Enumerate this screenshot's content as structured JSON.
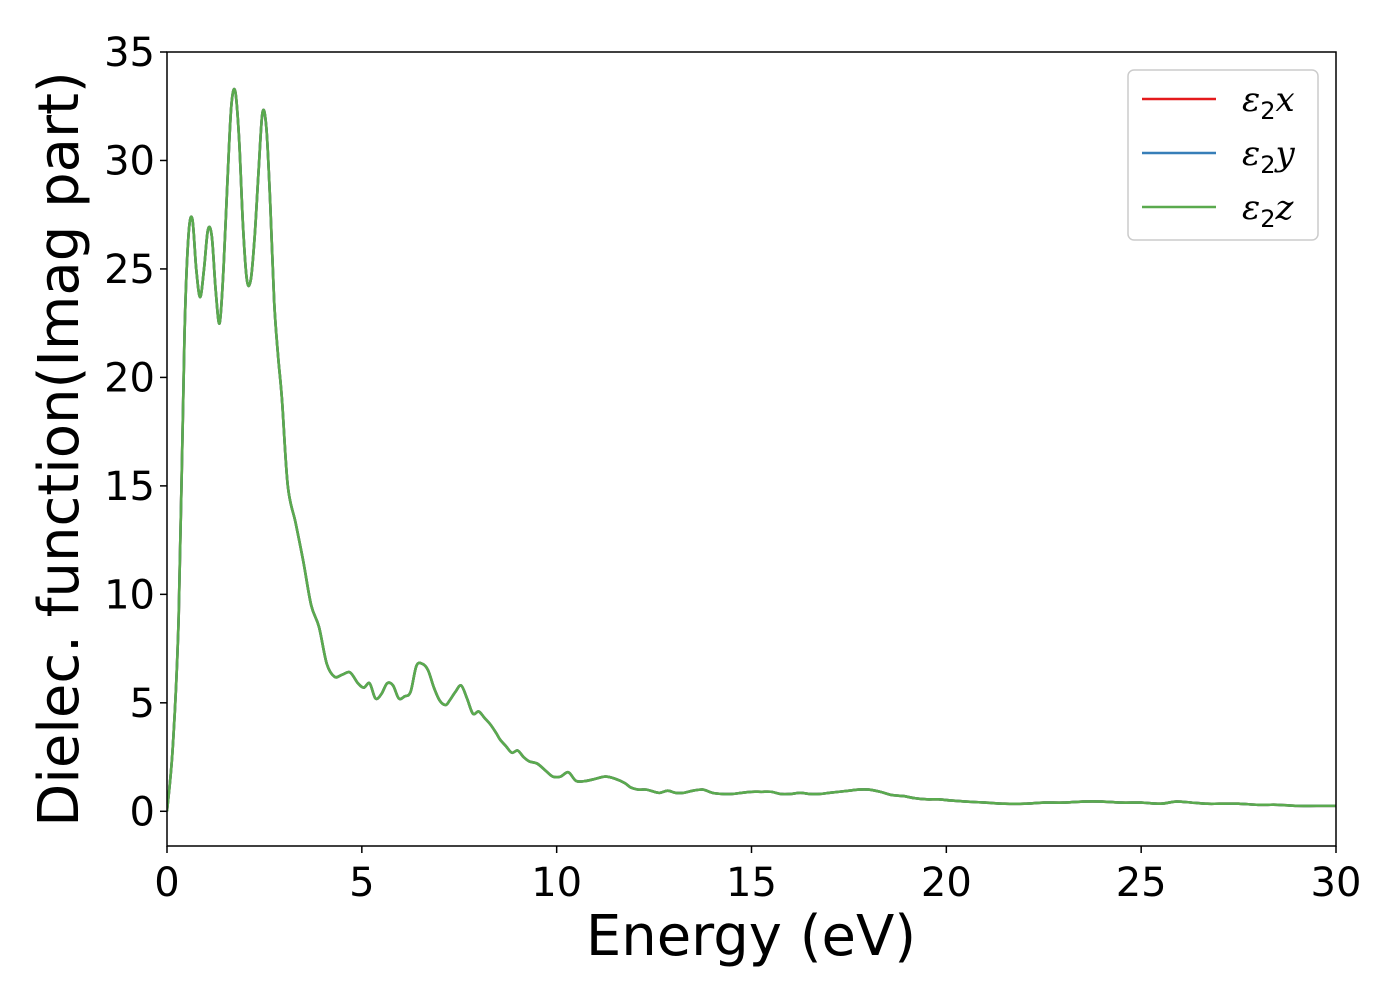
{
  "chart_data": {
    "type": "line",
    "xlabel": "Energy (eV)",
    "ylabel": "Dielec. function(Imag part)",
    "xlim": [
      0,
      30
    ],
    "ylim": [
      -1.6,
      35
    ],
    "xticks": [
      0,
      5,
      10,
      15,
      20,
      25,
      30
    ],
    "yticks": [
      0,
      5,
      10,
      15,
      20,
      25,
      30,
      35
    ],
    "grid": false,
    "legend_position": "top-right",
    "legend": [
      {
        "base": "ε",
        "sub": "2",
        "suffix": "x"
      },
      {
        "base": "ε",
        "sub": "2",
        "suffix": "y"
      },
      {
        "base": "ε",
        "sub": "2",
        "suffix": "z"
      }
    ],
    "series_colors": [
      "#e41a1c",
      "#377eb8",
      "#5aaa4e"
    ],
    "note": "All three series overlap; they share the same values.",
    "x": [
      0.0,
      0.15,
      0.3,
      0.45,
      0.55,
      0.65,
      0.75,
      0.85,
      0.95,
      1.05,
      1.15,
      1.25,
      1.35,
      1.45,
      1.55,
      1.65,
      1.75,
      1.85,
      1.95,
      2.05,
      2.15,
      2.25,
      2.35,
      2.45,
      2.55,
      2.65,
      2.75,
      2.85,
      2.95,
      3.1,
      3.3,
      3.5,
      3.7,
      3.9,
      4.1,
      4.3,
      4.5,
      4.7,
      4.9,
      5.05,
      5.2,
      5.35,
      5.5,
      5.65,
      5.8,
      5.95,
      6.1,
      6.25,
      6.4,
      6.55,
      6.7,
      6.85,
      7.0,
      7.15,
      7.25,
      7.4,
      7.55,
      7.7,
      7.85,
      8.0,
      8.15,
      8.3,
      8.45,
      8.55,
      8.7,
      8.85,
      9.0,
      9.15,
      9.3,
      9.5,
      9.7,
      9.9,
      10.1,
      10.3,
      10.5,
      10.75,
      11.0,
      11.25,
      11.5,
      11.75,
      11.9,
      12.1,
      12.3,
      12.5,
      12.65,
      12.85,
      13.05,
      13.25,
      13.5,
      13.75,
      14.0,
      14.25,
      14.5,
      14.75,
      15.0,
      15.25,
      15.5,
      15.75,
      16.0,
      16.25,
      16.5,
      16.75,
      17.0,
      17.25,
      17.5,
      17.75,
      18.0,
      18.3,
      18.6,
      18.9,
      19.2,
      19.5,
      19.8,
      20.1,
      20.5,
      21.0,
      21.5,
      22.0,
      22.5,
      23.0,
      23.5,
      24.0,
      24.5,
      25.0,
      25.5,
      25.9,
      26.3,
      26.7,
      27.0,
      27.5,
      28.0,
      28.5,
      29.0,
      29.5,
      30.0
    ],
    "series": [
      {
        "values": [
          0.0,
          3.0,
          9.0,
          22.0,
          26.5,
          27.3,
          25.0,
          23.7,
          25.0,
          26.8,
          26.5,
          24.0,
          22.5,
          25.0,
          29.0,
          32.5,
          33.2,
          31.0,
          27.0,
          24.5,
          24.5,
          26.5,
          29.5,
          32.2,
          31.5,
          28.0,
          23.5,
          21.0,
          19.0,
          15.0,
          13.3,
          11.5,
          9.5,
          8.5,
          6.8,
          6.2,
          6.3,
          6.4,
          5.9,
          5.7,
          5.9,
          5.2,
          5.4,
          5.9,
          5.8,
          5.2,
          5.3,
          5.5,
          6.7,
          6.8,
          6.5,
          5.7,
          5.1,
          4.9,
          5.1,
          5.5,
          5.8,
          5.2,
          4.5,
          4.6,
          4.3,
          4.0,
          3.6,
          3.3,
          3.0,
          2.7,
          2.8,
          2.5,
          2.3,
          2.2,
          1.9,
          1.6,
          1.6,
          1.8,
          1.4,
          1.4,
          1.5,
          1.6,
          1.5,
          1.3,
          1.1,
          1.0,
          1.0,
          0.9,
          0.85,
          0.95,
          0.85,
          0.85,
          0.95,
          1.0,
          0.85,
          0.8,
          0.8,
          0.85,
          0.9,
          0.9,
          0.9,
          0.8,
          0.8,
          0.85,
          0.8,
          0.8,
          0.85,
          0.9,
          0.95,
          1.0,
          1.0,
          0.9,
          0.75,
          0.7,
          0.6,
          0.55,
          0.55,
          0.5,
          0.45,
          0.4,
          0.35,
          0.35,
          0.4,
          0.4,
          0.45,
          0.45,
          0.4,
          0.4,
          0.35,
          0.45,
          0.4,
          0.35,
          0.35,
          0.35,
          0.3,
          0.3,
          0.25,
          0.25,
          0.25
        ]
      }
    ]
  }
}
